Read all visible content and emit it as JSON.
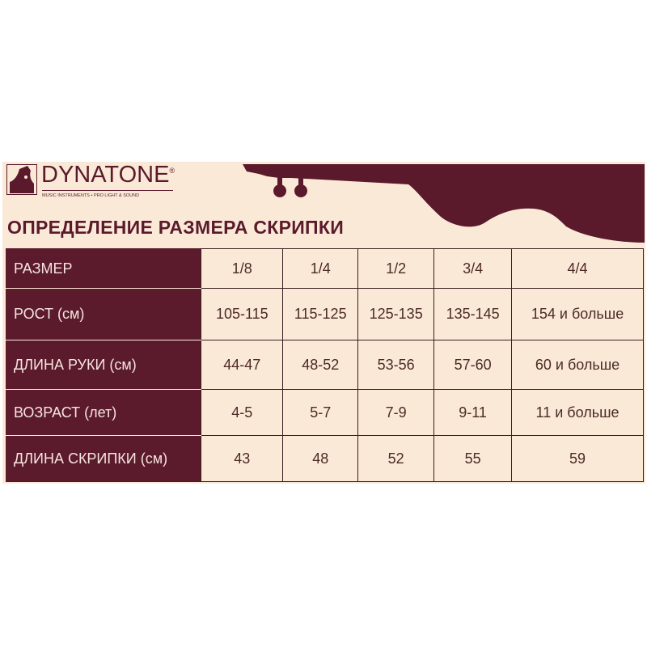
{
  "brand": {
    "name": "DYNATONE",
    "registered": "®",
    "tagline": "MUSIC INSTRUMENTS • PRO LIGHT & SOUND"
  },
  "title": "ОПРЕДЕЛЕНИЕ РАЗМЕРА СКРИПКИ",
  "colors": {
    "accent": "#5c1a2d",
    "background": "#fbe9d8"
  },
  "table": {
    "rows": [
      {
        "label": "РАЗМЕР",
        "values": [
          "1/8",
          "1/4",
          "1/2",
          "3/4",
          "4/4"
        ]
      },
      {
        "label": "РОСТ (см)",
        "values": [
          "105-115",
          "115-125",
          "125-135",
          "135-145",
          "154 и больше"
        ]
      },
      {
        "label": "ДЛИНА РУКИ (см)",
        "values": [
          "44-47",
          "48-52",
          "53-56",
          "57-60",
          "60 и больше"
        ]
      },
      {
        "label": "ВОЗРАСТ (лет)",
        "values": [
          "4-5",
          "5-7",
          "7-9",
          "9-11",
          "11 и больше"
        ]
      },
      {
        "label": "ДЛИНА СКРИПКИ (см)",
        "values": [
          "43",
          "48",
          "52",
          "55",
          "59"
        ]
      }
    ]
  }
}
